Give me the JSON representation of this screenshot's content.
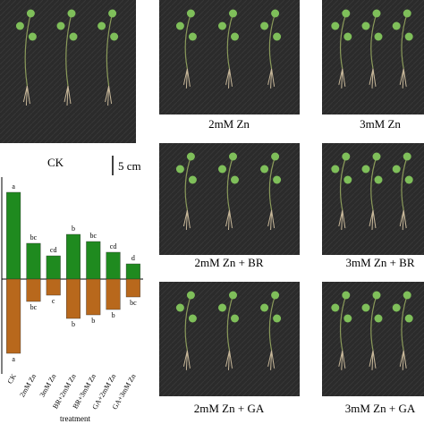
{
  "panels": {
    "ck_label": "CK",
    "scale_bar": "5 cm",
    "photo_labels": [
      "2mM Zn",
      "3mM Zn",
      "2mM Zn + BR",
      "3mM Zn + BR",
      "2mM Zn + GA",
      "3mM Zn + GA"
    ]
  },
  "chart_data": {
    "type": "bar",
    "categories": [
      "CK",
      "2mM Zn",
      "3mM Zn",
      "BR+2mM Zn",
      "BR+3mM Zn",
      "GA+2mM Zn",
      "GA+3mM Zn"
    ],
    "x_label": "treatment",
    "series": [
      {
        "color": "#1f8a1f",
        "values": [
          97,
          40,
          26,
          50,
          42,
          30,
          17
        ],
        "labels": [
          "a",
          "bc",
          "cd",
          "b",
          "bc",
          "cd",
          "d"
        ]
      },
      {
        "color": "#b8681c",
        "values": [
          -83,
          -25,
          -18,
          -44,
          -40,
          -34,
          -20
        ],
        "labels": [
          "a",
          "bc",
          "c",
          "b",
          "b",
          "b",
          "bc"
        ]
      }
    ],
    "ylim": [
      -100,
      100
    ]
  }
}
